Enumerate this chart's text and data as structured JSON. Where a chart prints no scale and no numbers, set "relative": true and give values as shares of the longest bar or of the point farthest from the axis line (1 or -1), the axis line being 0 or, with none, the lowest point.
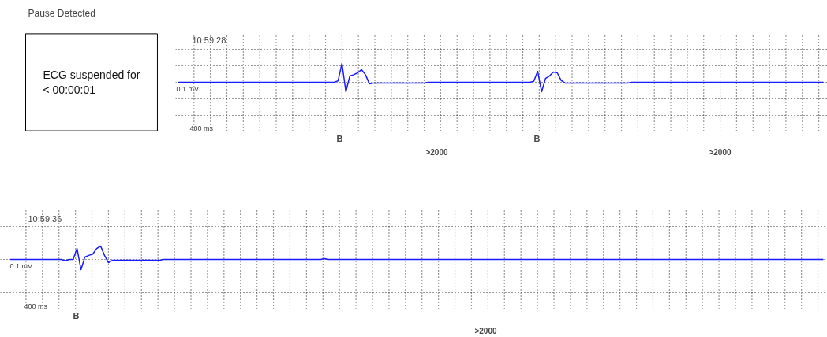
{
  "chart_data": [
    {
      "type": "other",
      "title": "Pause Detected",
      "annotations": [
        "ECG suspended for < 00:00:01"
      ]
    },
    {
      "type": "line",
      "relative": true,
      "grid": true,
      "marker": "none",
      "line_style": "solid",
      "annotations": [
        "10:59:28",
        "0.1 mV",
        "400 ms",
        "B",
        "B",
        ">2000",
        ">2000"
      ],
      "categories": [
        null,
        null,
        null,
        null,
        null,
        null,
        null,
        null,
        null,
        null,
        null,
        null,
        null,
        null,
        null,
        null,
        null,
        null,
        null,
        null,
        null,
        null,
        null,
        null,
        null,
        null,
        null,
        null,
        null,
        null,
        null,
        null,
        null,
        null,
        null,
        null,
        null,
        null,
        null,
        null,
        null,
        null,
        null,
        null,
        null,
        null,
        null,
        null,
        null,
        null,
        null,
        null,
        null,
        null,
        null,
        null,
        null,
        null,
        null,
        null,
        null,
        null,
        null,
        null,
        null,
        null,
        null,
        null,
        null,
        null,
        null,
        null,
        null,
        null,
        null,
        null,
        null,
        null,
        null,
        null,
        null,
        null,
        null,
        null,
        null,
        null,
        null,
        null,
        null,
        null,
        null,
        null,
        null,
        null,
        null,
        null,
        null,
        null,
        null,
        null,
        null,
        null,
        null,
        null,
        null,
        null,
        null,
        null,
        null,
        null,
        null,
        null,
        null,
        null,
        null,
        null,
        null,
        null,
        null,
        null,
        null,
        null,
        null,
        null,
        null,
        null,
        null,
        null,
        null,
        null,
        null,
        null,
        null,
        null,
        null,
        null,
        null,
        null,
        null,
        null,
        null,
        null,
        null,
        null,
        null,
        null,
        null,
        null,
        null,
        null,
        null,
        null,
        null,
        null,
        null,
        null,
        null,
        null,
        null,
        null,
        null,
        null,
        null,
        null,
        null,
        null
      ],
      "series": [
        {
          "color": "#1a1aff",
          "values": [
            0,
            0,
            0,
            0,
            0,
            0,
            0,
            0,
            0,
            0,
            0,
            0,
            0,
            0,
            0,
            0,
            0,
            0,
            0,
            0,
            0,
            0,
            0,
            0,
            0,
            0,
            0,
            0,
            0,
            0,
            0,
            0,
            0,
            0,
            0,
            0,
            0,
            0,
            0,
            0,
            0,
            0.08,
            1,
            -0.5,
            0.33,
            0.4,
            0.5,
            0.67,
            0.4,
            -0.08,
            -0.04,
            -0.04,
            -0.04,
            -0.04,
            -0.04,
            -0.04,
            -0.04,
            -0.04,
            -0.04,
            -0.04,
            -0.04,
            -0.04,
            -0.04,
            -0.04,
            0,
            0,
            0,
            0,
            0,
            0,
            0,
            0,
            0,
            0,
            0,
            0,
            0,
            0,
            0,
            0,
            0,
            0,
            0,
            0,
            0,
            0,
            0,
            0,
            0,
            0,
            0,
            0.05,
            0.58,
            -0.5,
            0.2,
            0.33,
            0.54,
            0.5,
            0.1,
            -0.04,
            -0.04,
            -0.04,
            -0.04,
            -0.04,
            -0.04,
            -0.04,
            -0.04,
            -0.04,
            -0.04,
            -0.04,
            -0.04,
            -0.04,
            -0.04,
            -0.04,
            -0.04,
            -0.04,
            0,
            0,
            0,
            0,
            0,
            0,
            0,
            0,
            0,
            0,
            0,
            0,
            0,
            0,
            0,
            0,
            0,
            0,
            0,
            0,
            0,
            0,
            0,
            0,
            0,
            0,
            0,
            0,
            0,
            0,
            0,
            0,
            0,
            0,
            0,
            0,
            0,
            0,
            0,
            0,
            0,
            0,
            0,
            0,
            0,
            0,
            0,
            0,
            0,
            0
          ]
        }
      ]
    },
    {
      "type": "line",
      "relative": true,
      "grid": true,
      "marker": "none",
      "line_style": "solid",
      "annotations": [
        "10:59:36",
        "0.1 mV",
        "400 ms",
        "B",
        ">2000"
      ],
      "categories": [
        null,
        null,
        null,
        null,
        null,
        null,
        null,
        null,
        null,
        null,
        null,
        null,
        null,
        null,
        null,
        null,
        null,
        null,
        null,
        null,
        null,
        null,
        null,
        null,
        null,
        null,
        null,
        null,
        null,
        null,
        null,
        null,
        null,
        null,
        null,
        null,
        null,
        null,
        null,
        null,
        null,
        null,
        null,
        null,
        null,
        null,
        null,
        null,
        null,
        null,
        null,
        null,
        null,
        null,
        null,
        null,
        null,
        null,
        null,
        null,
        null,
        null,
        null,
        null,
        null,
        null,
        null,
        null,
        null,
        null,
        null,
        null,
        null,
        null,
        null,
        null,
        null,
        null,
        null,
        null,
        null,
        null,
        null,
        null,
        null,
        null,
        null,
        null,
        null,
        null,
        null,
        null,
        null,
        null,
        null,
        null,
        null,
        null,
        null,
        null,
        null,
        null,
        null,
        null,
        null,
        null,
        null,
        null,
        null,
        null,
        null,
        null,
        null,
        null,
        null,
        null,
        null,
        null,
        null,
        null,
        null,
        null,
        null,
        null,
        null,
        null,
        null,
        null,
        null,
        null,
        null,
        null,
        null,
        null,
        null,
        null,
        null,
        null,
        null,
        null,
        null,
        null,
        null,
        null,
        null,
        null,
        null,
        null,
        null,
        null,
        null,
        null,
        null,
        null,
        null,
        null,
        null,
        null,
        null,
        null,
        null,
        null,
        null,
        null,
        null,
        null,
        null,
        null,
        null,
        null,
        null,
        null,
        null,
        null,
        null,
        null,
        null,
        null,
        null,
        null,
        null,
        null,
        null,
        null,
        null,
        null,
        null,
        null,
        null,
        null,
        null,
        null,
        null,
        null,
        null,
        null,
        null,
        null,
        null,
        null,
        null,
        null,
        null,
        null,
        null,
        null,
        null,
        null
      ],
      "series": [
        {
          "color": "#1a1aff",
          "values": [
            0,
            0,
            0,
            0,
            0,
            0,
            0,
            0,
            0,
            0,
            0,
            0,
            0,
            0,
            -0.1,
            0,
            0,
            0.82,
            -0.76,
            0.18,
            0.3,
            0.4,
            0.82,
            1,
            0.3,
            -0.24,
            -0.06,
            -0.06,
            -0.06,
            -0.06,
            -0.06,
            -0.06,
            -0.06,
            -0.06,
            -0.06,
            -0.06,
            -0.06,
            -0.06,
            -0.06,
            0,
            0,
            0,
            0,
            0,
            0,
            0,
            0,
            0,
            0,
            0,
            0,
            0,
            0,
            0,
            0,
            0,
            0,
            0,
            0,
            0,
            0,
            0,
            0,
            0,
            0,
            0,
            0,
            0,
            0,
            0,
            0,
            0,
            0,
            0,
            0,
            0,
            0,
            0,
            0,
            0,
            0.06,
            0,
            0,
            0,
            0,
            0,
            0,
            0,
            0,
            0,
            0,
            0,
            0,
            0,
            0,
            0,
            0,
            0,
            0,
            0,
            0,
            0,
            0,
            0,
            0,
            0,
            0,
            0,
            0,
            0,
            0,
            0,
            0,
            0,
            0,
            0,
            0,
            0,
            0,
            0,
            0,
            0,
            0,
            0,
            0,
            0,
            0,
            0,
            0,
            0,
            0,
            0,
            0,
            0,
            0,
            0,
            0,
            0,
            0,
            0,
            0,
            0,
            0,
            0,
            0,
            0,
            0,
            0,
            0,
            0,
            0,
            0,
            0,
            0,
            0,
            0,
            0,
            0,
            0,
            0,
            0,
            0,
            0,
            0,
            0,
            0,
            0,
            0,
            0,
            0,
            0,
            0,
            0,
            0,
            0,
            0,
            0,
            0,
            0,
            0,
            0,
            0,
            0,
            0,
            0,
            0,
            0,
            0,
            0,
            0,
            0,
            0,
            0,
            0,
            0,
            0,
            0,
            0,
            0,
            0,
            0,
            0,
            0,
            0,
            0,
            0,
            0,
            0
          ]
        }
      ]
    }
  ]
}
